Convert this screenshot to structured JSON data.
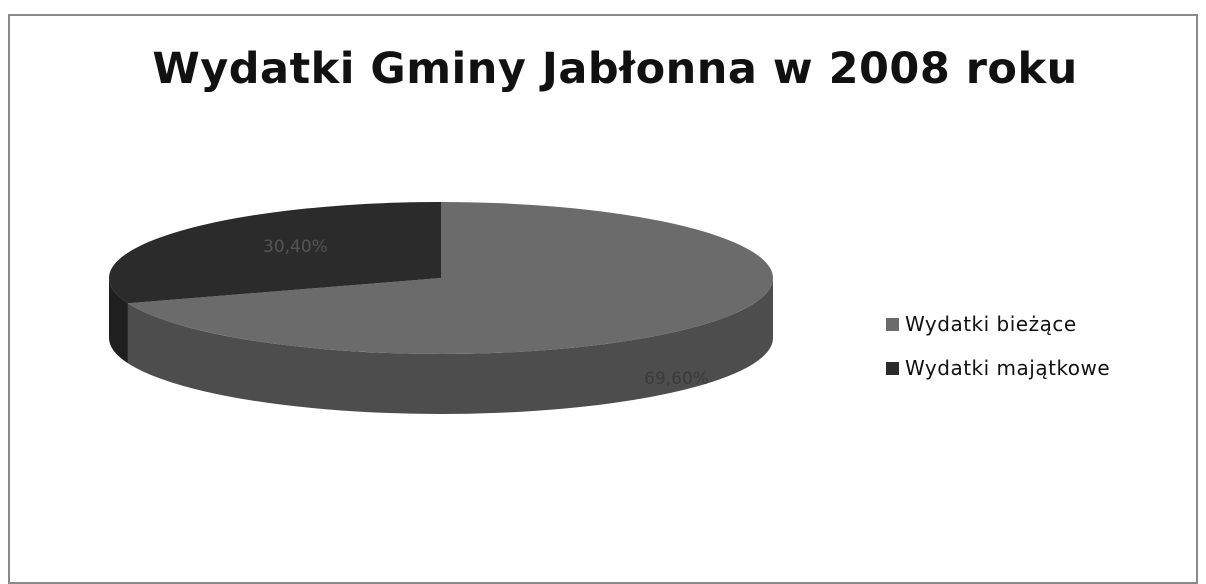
{
  "chart_data": {
    "type": "pie",
    "title": "Wydatki Gminy Jabłonna w 2008 roku",
    "categories": [
      "Wydatki bieżące",
      "Wydatki majątkowe"
    ],
    "values": [
      69.6,
      30.4
    ],
    "data_labels": [
      "69,60%",
      "30,40%"
    ],
    "colors": [
      "#6b6b6b",
      "#2b2b2b"
    ],
    "legend": "right",
    "style": "3d"
  }
}
